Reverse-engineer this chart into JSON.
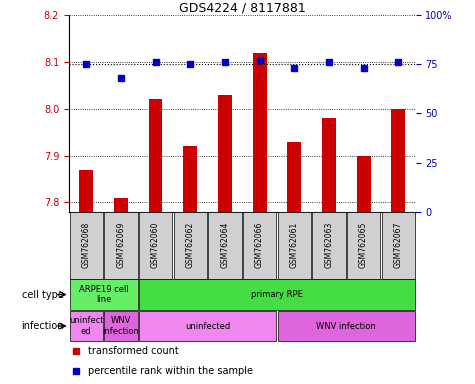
{
  "title": "GDS4224 / 8117881",
  "samples": [
    "GSM762068",
    "GSM762069",
    "GSM762060",
    "GSM762062",
    "GSM762064",
    "GSM762066",
    "GSM762061",
    "GSM762063",
    "GSM762065",
    "GSM762067"
  ],
  "bar_values": [
    7.87,
    7.81,
    8.02,
    7.92,
    8.03,
    8.12,
    7.93,
    7.98,
    7.9,
    8.0
  ],
  "dot_values": [
    75,
    68,
    76,
    75,
    76,
    77,
    73,
    76,
    73,
    76
  ],
  "ylim_left": [
    7.78,
    8.2
  ],
  "ylim_right": [
    0,
    100
  ],
  "yticks_left": [
    7.8,
    7.9,
    8.0,
    8.1,
    8.2
  ],
  "yticks_right": [
    0,
    25,
    50,
    75,
    100
  ],
  "bar_color": "#cc0000",
  "dot_color": "#0000cc",
  "bar_baseline": 7.78,
  "cell_type_labels": [
    {
      "text": "ARPE19 cell\nline",
      "start": 0,
      "end": 2,
      "color": "#66ee66"
    },
    {
      "text": "primary RPE",
      "start": 2,
      "end": 10,
      "color": "#44dd44"
    }
  ],
  "infection_labels": [
    {
      "text": "uninfect\ned",
      "start": 0,
      "end": 1,
      "color": "#ee88ee"
    },
    {
      "text": "WNV\ninfection",
      "start": 1,
      "end": 2,
      "color": "#dd66dd"
    },
    {
      "text": "uninfected",
      "start": 2,
      "end": 6,
      "color": "#ee88ee"
    },
    {
      "text": "WNV infection",
      "start": 6,
      "end": 10,
      "color": "#dd66dd"
    }
  ],
  "cell_type_row_label": "cell type",
  "infection_row_label": "infection",
  "legend_bar_label": "transformed count",
  "legend_dot_label": "percentile rank within the sample",
  "tick_label_color_left": "#cc0000",
  "tick_label_color_right": "#0000cc",
  "sample_box_color": "#d0d0d0",
  "sample_text_color": "#000000"
}
